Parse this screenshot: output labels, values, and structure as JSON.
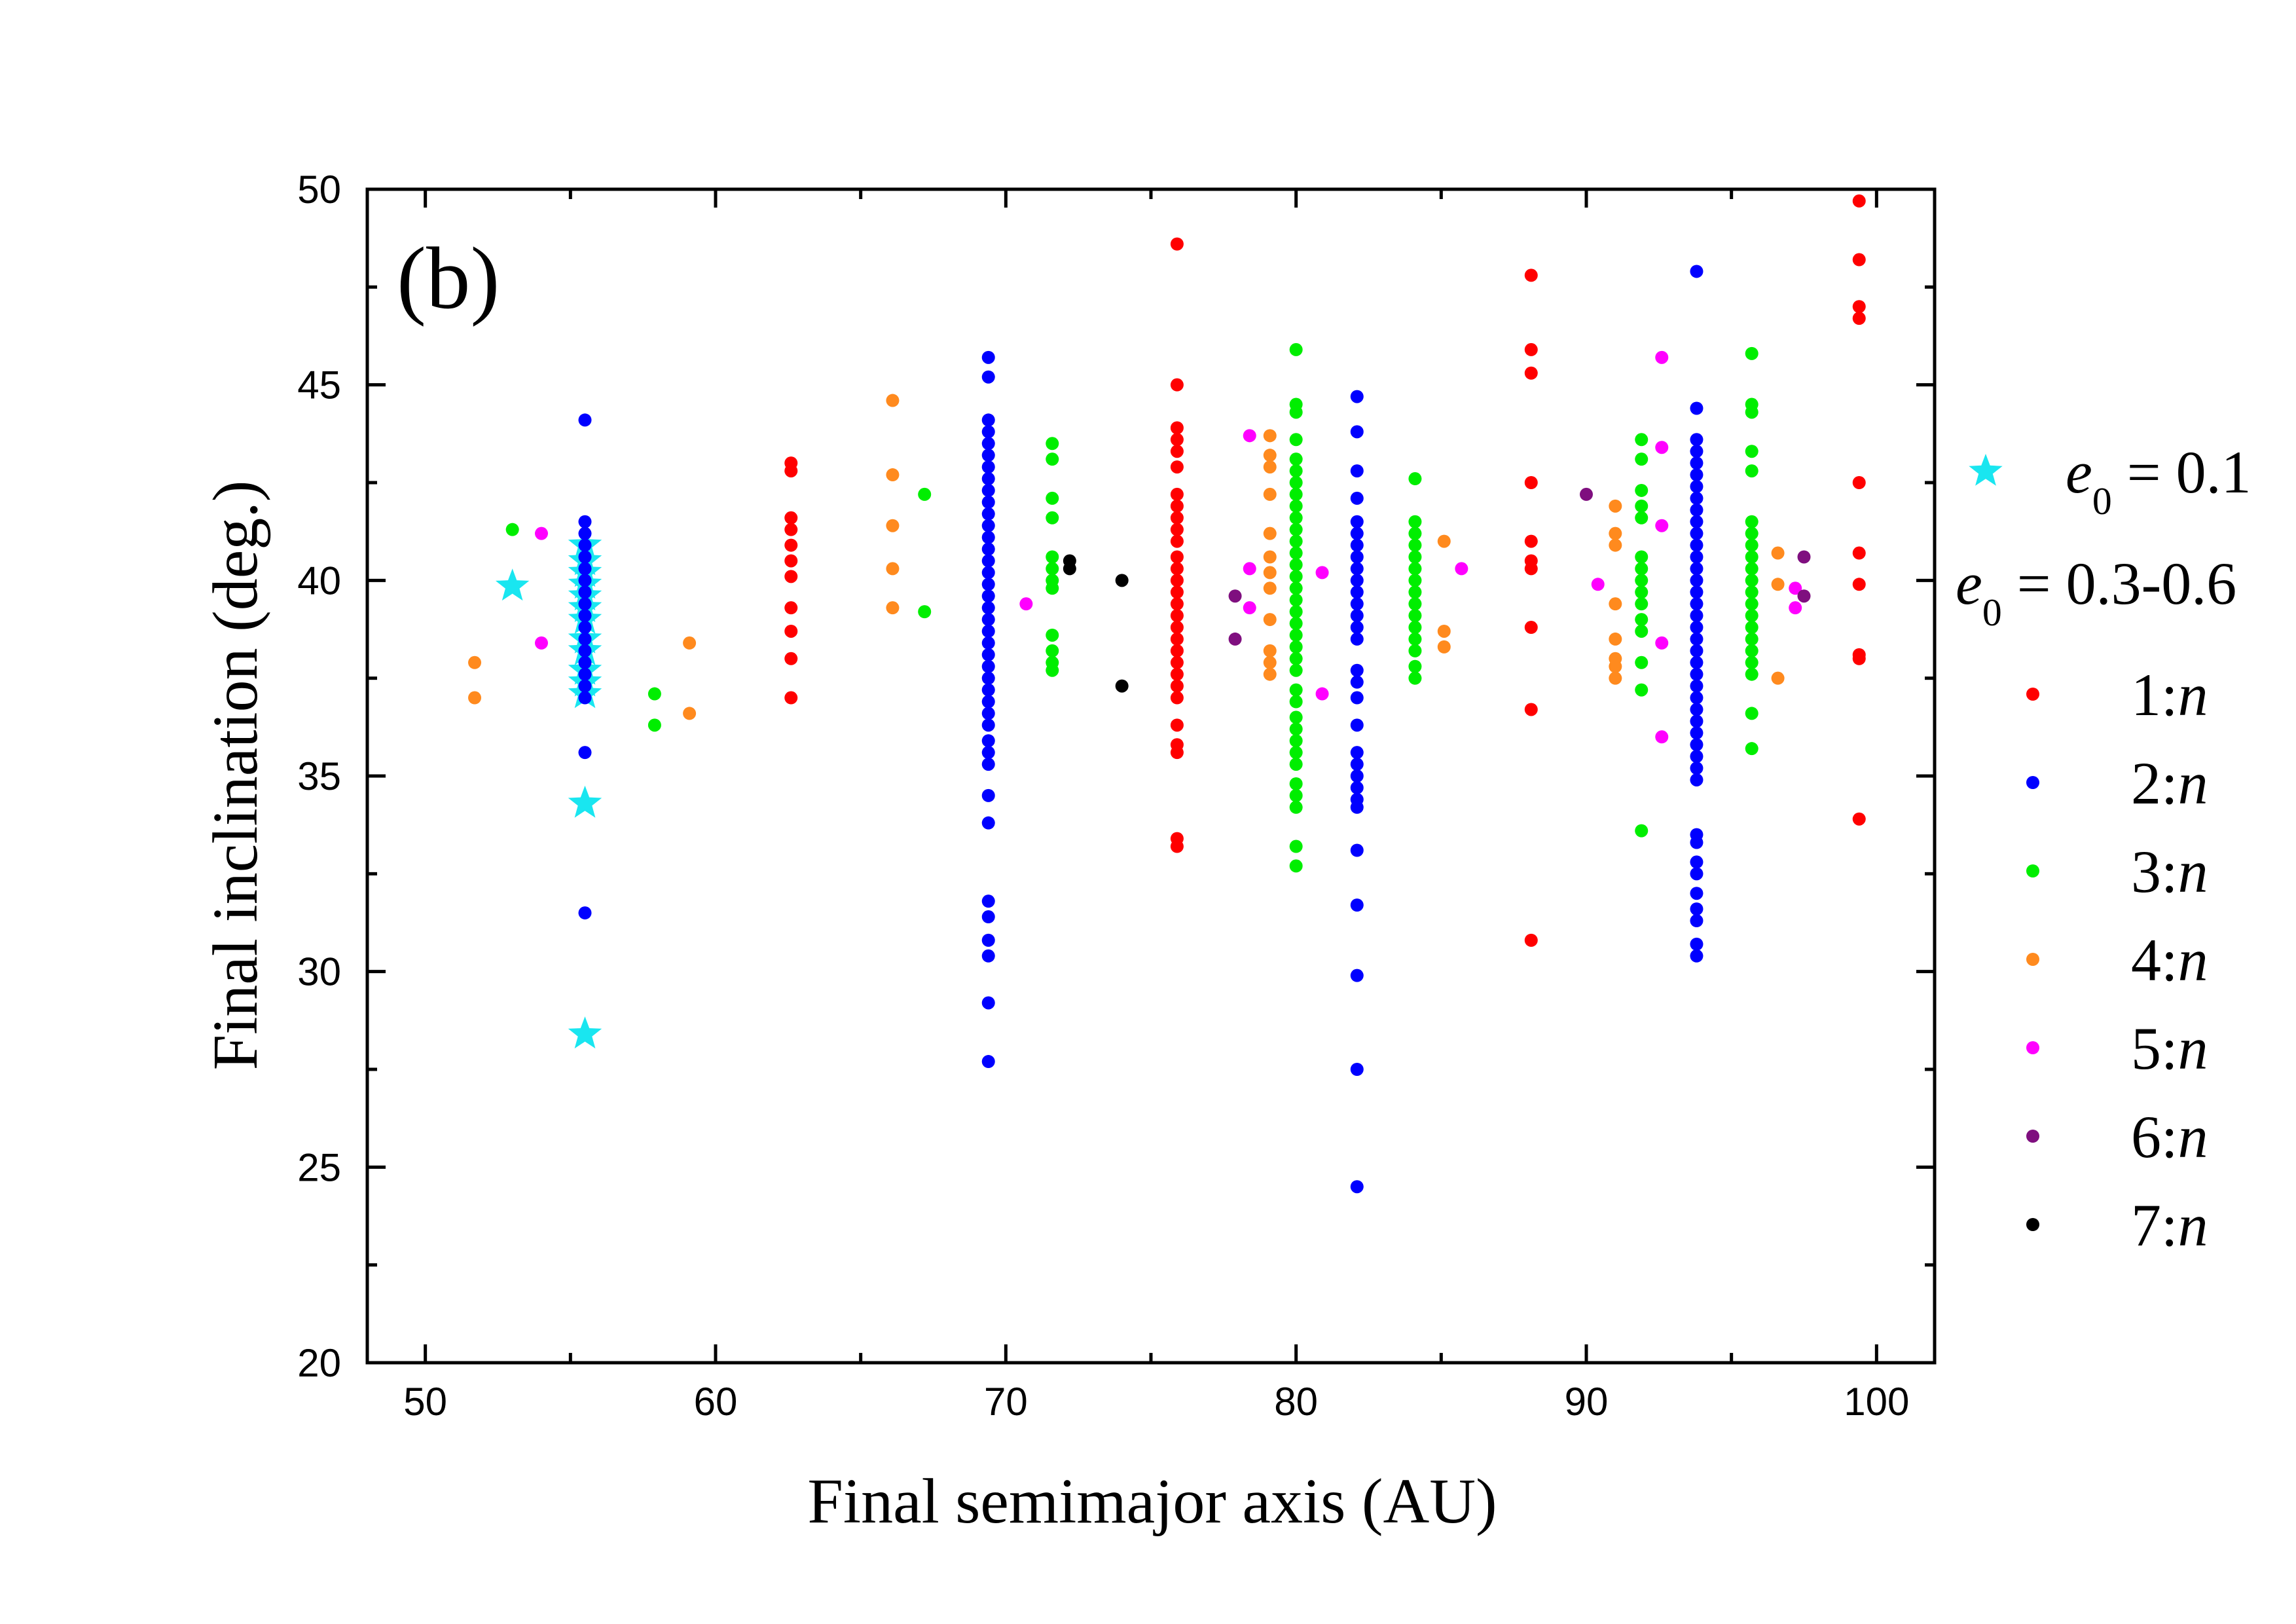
{
  "chart_data": {
    "type": "scatter",
    "annotation": "(b)",
    "x_label": "Final semimajor axis (AU)",
    "y_label": "Final inclination (deg.)",
    "xlim": [
      48,
      102
    ],
    "xticks": [
      50,
      60,
      70,
      80,
      90,
      100
    ],
    "xminorticks": [
      55,
      65,
      75,
      85,
      95
    ],
    "ylim": [
      20,
      50
    ],
    "yticks": [
      20,
      25,
      30,
      35,
      40,
      45,
      50
    ],
    "yminorticks": [
      22.5,
      27.5,
      32.5,
      37.5,
      42.5,
      47.5
    ],
    "legend_heading": "e0 = 0.3-0.6",
    "series": [
      {
        "name": "e0 = 0.1",
        "color": "#19e6f0",
        "marker": "star",
        "x": [
          53.0,
          55.5,
          55.5,
          55.5,
          55.5,
          55.5,
          55.5,
          55.5,
          55.5,
          55.5,
          55.5,
          55.5,
          55.5,
          55.5,
          55.5
        ],
        "values": [
          39.85,
          40.9,
          40.5,
          40.2,
          39.9,
          39.6,
          39.3,
          39.0,
          38.5,
          38.2,
          37.7,
          37.4,
          37.1,
          34.3,
          28.4
        ]
      },
      {
        "name": "1:n",
        "color": "#ff0000",
        "marker": "dot",
        "x": [
          62.6,
          62.6,
          62.6,
          62.6,
          62.6,
          62.6,
          62.6,
          62.6,
          62.6,
          62.6,
          62.6,
          75.9,
          75.9,
          75.9,
          75.9,
          75.9,
          75.9,
          75.9,
          75.9,
          75.9,
          75.9,
          75.9,
          75.9,
          75.9,
          75.9,
          75.9,
          75.9,
          75.9,
          75.9,
          75.9,
          75.9,
          75.9,
          75.9,
          75.9,
          75.9,
          75.9,
          75.9,
          75.9,
          75.9,
          75.9,
          88.1,
          88.1,
          88.1,
          88.1,
          88.1,
          88.1,
          88.1,
          88.1,
          88.1,
          88.1,
          99.4,
          99.4,
          99.4,
          99.4,
          99.4,
          99.4,
          99.4,
          99.4,
          99.4,
          99.4
        ],
        "values": [
          43.0,
          42.8,
          41.6,
          41.3,
          40.9,
          40.5,
          40.1,
          39.3,
          38.7,
          38.0,
          37.0,
          48.6,
          45.0,
          43.9,
          43.6,
          43.3,
          42.9,
          42.2,
          41.9,
          41.6,
          41.3,
          41.0,
          40.6,
          40.3,
          40.0,
          39.7,
          39.4,
          39.1,
          38.8,
          38.5,
          38.2,
          37.9,
          37.6,
          37.3,
          37.0,
          36.3,
          35.8,
          35.6,
          33.4,
          33.2,
          47.8,
          45.9,
          45.3,
          42.5,
          41.0,
          40.5,
          40.3,
          38.8,
          36.7,
          30.8,
          49.7,
          48.2,
          47.0,
          46.7,
          42.5,
          40.7,
          39.9,
          38.1,
          38.0,
          33.9
        ]
      },
      {
        "name": "2:n",
        "color": "#0000ff",
        "marker": "dot",
        "x": [
          55.5,
          55.5,
          55.5,
          55.5,
          55.5,
          55.5,
          55.5,
          55.5,
          55.5,
          55.5,
          55.5,
          55.5,
          55.5,
          55.5,
          55.5,
          55.5,
          55.5,
          55.5,
          55.5,
          69.4,
          69.4,
          69.4,
          69.4,
          69.4,
          69.4,
          69.4,
          69.4,
          69.4,
          69.4,
          69.4,
          69.4,
          69.4,
          69.4,
          69.4,
          69.4,
          69.4,
          69.4,
          69.4,
          69.4,
          69.4,
          69.4,
          69.4,
          69.4,
          69.4,
          69.4,
          69.4,
          69.4,
          69.4,
          69.4,
          69.4,
          69.4,
          69.4,
          69.4,
          69.4,
          69.4,
          69.4,
          69.4,
          69.4,
          69.4,
          82.1,
          82.1,
          82.1,
          82.1,
          82.1,
          82.1,
          82.1,
          82.1,
          82.1,
          82.1,
          82.1,
          82.1,
          82.1,
          82.1,
          82.1,
          82.1,
          82.1,
          82.1,
          82.1,
          82.1,
          82.1,
          82.1,
          82.1,
          82.1,
          82.1,
          82.1,
          82.1,
          82.1,
          82.1,
          82.1,
          93.8,
          93.8,
          93.8,
          93.8,
          93.8,
          93.8,
          93.8,
          93.8,
          93.8,
          93.8,
          93.8,
          93.8,
          93.8,
          93.8,
          93.8,
          93.8,
          93.8,
          93.8,
          93.8,
          93.8,
          93.8,
          93.8,
          93.8,
          93.8,
          93.8,
          93.8,
          93.8,
          93.8,
          93.8,
          93.8,
          93.8,
          93.8,
          93.8,
          93.8,
          93.8,
          93.8,
          93.8,
          93.8,
          93.8,
          93.8,
          93.8
        ],
        "values": [
          44.1,
          41.5,
          41.2,
          40.9,
          40.6,
          40.3,
          40.0,
          39.7,
          39.4,
          39.1,
          38.8,
          38.5,
          38.2,
          37.9,
          37.6,
          37.3,
          37.0,
          35.6,
          31.5,
          45.7,
          45.2,
          44.1,
          43.8,
          43.5,
          43.2,
          42.9,
          42.6,
          42.3,
          42.0,
          41.7,
          41.4,
          41.1,
          40.8,
          40.5,
          40.2,
          39.9,
          39.6,
          39.3,
          39.0,
          38.7,
          38.4,
          38.1,
          37.8,
          37.5,
          37.2,
          36.9,
          36.6,
          36.3,
          35.9,
          35.6,
          35.3,
          34.5,
          33.8,
          31.8,
          31.4,
          30.8,
          30.4,
          29.2,
          27.7,
          44.7,
          43.8,
          42.8,
          42.1,
          41.5,
          41.2,
          40.9,
          40.6,
          40.3,
          40.0,
          39.7,
          39.4,
          39.1,
          38.8,
          38.5,
          37.7,
          37.4,
          37.0,
          36.3,
          35.6,
          35.3,
          35.0,
          34.7,
          34.4,
          34.2,
          33.1,
          31.7,
          29.9,
          27.5,
          24.5,
          47.9,
          44.4,
          43.6,
          43.3,
          43.0,
          42.7,
          42.4,
          42.1,
          41.8,
          41.5,
          41.2,
          40.9,
          40.6,
          40.3,
          40.0,
          39.7,
          39.4,
          39.1,
          38.8,
          38.5,
          38.2,
          37.9,
          37.6,
          37.3,
          37.0,
          36.7,
          36.4,
          36.1,
          35.8,
          35.5,
          35.2,
          34.9,
          33.5,
          33.3,
          32.8,
          32.5,
          32.0,
          31.6,
          31.3,
          30.7,
          30.4
        ]
      },
      {
        "name": "3:n",
        "color": "#00ee00",
        "marker": "dot",
        "x": [
          53.0,
          57.9,
          57.9,
          67.2,
          67.2,
          71.6,
          71.6,
          71.6,
          71.6,
          71.6,
          71.6,
          71.6,
          71.6,
          71.6,
          71.6,
          71.6,
          71.6,
          80.0,
          80.0,
          80.0,
          80.0,
          80.0,
          80.0,
          80.0,
          80.0,
          80.0,
          80.0,
          80.0,
          80.0,
          80.0,
          80.0,
          80.0,
          80.0,
          80.0,
          80.0,
          80.0,
          80.0,
          80.0,
          80.0,
          80.0,
          80.0,
          80.0,
          80.0,
          80.0,
          80.0,
          80.0,
          80.0,
          80.0,
          80.0,
          80.0,
          80.0,
          80.0,
          84.1,
          84.1,
          84.1,
          84.1,
          84.1,
          84.1,
          84.1,
          84.1,
          84.1,
          84.1,
          84.1,
          84.1,
          84.1,
          84.1,
          84.1,
          91.9,
          91.9,
          91.9,
          91.9,
          91.9,
          91.9,
          91.9,
          91.9,
          91.9,
          91.9,
          91.9,
          91.9,
          91.9,
          91.9,
          91.9,
          95.7,
          95.7,
          95.7,
          95.7,
          95.7,
          95.7,
          95.7,
          95.7,
          95.7,
          95.7,
          95.7,
          95.7,
          95.7,
          95.7,
          95.7,
          95.7,
          95.7,
          95.7,
          95.7,
          95.7,
          95.7
        ],
        "values": [
          41.3,
          37.1,
          36.3,
          42.2,
          39.2,
          43.5,
          43.1,
          42.1,
          41.6,
          40.6,
          40.3,
          40.0,
          39.8,
          38.6,
          38.2,
          37.9,
          37.7,
          45.9,
          44.5,
          44.3,
          43.6,
          43.1,
          42.8,
          42.5,
          42.2,
          41.9,
          41.6,
          41.3,
          41.0,
          40.7,
          40.4,
          40.1,
          39.8,
          39.5,
          39.2,
          38.9,
          38.6,
          38.3,
          38.0,
          37.7,
          37.2,
          36.9,
          36.5,
          36.2,
          35.9,
          35.6,
          35.3,
          34.8,
          34.5,
          34.2,
          33.2,
          32.7,
          42.6,
          41.5,
          41.2,
          40.9,
          40.6,
          40.3,
          40.0,
          39.7,
          39.4,
          39.1,
          38.8,
          38.5,
          38.2,
          37.8,
          37.5,
          43.6,
          43.1,
          42.3,
          41.9,
          41.6,
          40.6,
          40.3,
          40.0,
          39.7,
          39.4,
          39.0,
          38.7,
          37.9,
          37.2,
          33.6,
          45.8,
          44.5,
          44.3,
          43.3,
          42.8,
          41.5,
          41.2,
          40.9,
          40.6,
          40.3,
          40.0,
          39.7,
          39.4,
          39.1,
          38.8,
          38.5,
          38.2,
          37.9,
          37.6,
          36.6,
          35.7
        ]
      },
      {
        "name": "4:n",
        "color": "#ff8a1e",
        "marker": "dot",
        "x": [
          51.7,
          51.7,
          59.1,
          59.1,
          66.1,
          66.1,
          66.1,
          66.1,
          66.1,
          79.1,
          79.1,
          79.1,
          79.1,
          79.1,
          79.1,
          79.1,
          79.1,
          79.1,
          79.1,
          79.1,
          79.1,
          85.1,
          85.1,
          85.1,
          91.0,
          91.0,
          91.0,
          91.0,
          91.0,
          91.0,
          91.0,
          91.0,
          96.6,
          96.6,
          96.6
        ],
        "values": [
          37.9,
          37.0,
          38.4,
          36.6,
          44.6,
          42.7,
          41.4,
          40.3,
          39.3,
          43.7,
          43.2,
          42.9,
          42.2,
          41.2,
          40.6,
          40.2,
          39.8,
          39.0,
          38.2,
          37.9,
          37.6,
          41.0,
          38.7,
          38.3,
          41.9,
          41.2,
          40.9,
          39.4,
          38.5,
          38.0,
          37.8,
          37.5,
          40.7,
          39.9,
          37.5
        ]
      },
      {
        "name": "5:n",
        "color": "#ff00ff",
        "marker": "dot",
        "x": [
          54.0,
          54.0,
          70.7,
          78.4,
          78.4,
          78.4,
          80.9,
          80.9,
          85.7,
          90.4,
          92.6,
          92.6,
          92.6,
          92.6,
          92.6,
          97.2,
          97.2
        ],
        "values": [
          41.2,
          38.4,
          39.4,
          43.7,
          40.3,
          39.3,
          40.2,
          37.1,
          40.3,
          39.9,
          45.7,
          43.4,
          41.4,
          38.4,
          36.0,
          39.8,
          39.3
        ]
      },
      {
        "name": "6:n",
        "color": "#7f0f7f",
        "marker": "dot",
        "x": [
          77.9,
          77.9,
          90.0,
          97.5,
          97.5
        ],
        "values": [
          39.6,
          38.5,
          42.2,
          40.6,
          39.6
        ]
      },
      {
        "name": "7:n",
        "color": "#000000",
        "marker": "dot",
        "x": [
          72.2,
          72.2,
          74.0,
          74.0
        ],
        "values": [
          40.5,
          40.3,
          40.0,
          37.3
        ]
      }
    ]
  }
}
